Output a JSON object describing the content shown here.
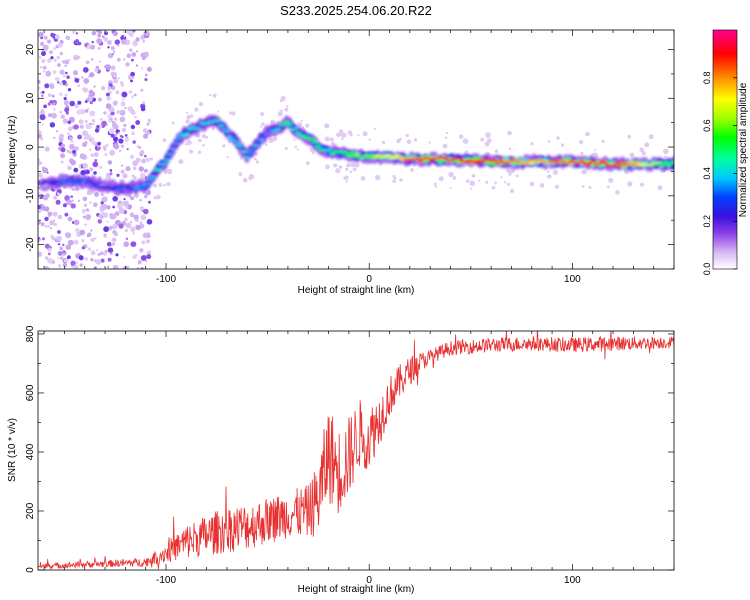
{
  "title": "S233.2025.254.06.20.R22",
  "chart_data": [
    {
      "type": "heatmap",
      "xlabel": "Height of straight line (km)",
      "ylabel": "Frequency (Hz)",
      "xlim": [
        -163,
        150
      ],
      "ylim": [
        -25,
        24
      ],
      "x_ticks": [
        -100,
        0,
        100
      ],
      "y_ticks": [
        -20,
        -10,
        0,
        10,
        20
      ],
      "colorbar": {
        "label": "Normalized spectral amplitude",
        "range": [
          0,
          1
        ],
        "ticks": [
          "0.0",
          "0.2",
          "0.4",
          "0.6",
          "0.8"
        ]
      },
      "ridge": {
        "x": [
          -160,
          -150,
          -140,
          -130,
          -120,
          -110,
          -105,
          -100,
          -95,
          -90,
          -85,
          -80,
          -75,
          -70,
          -65,
          -60,
          -55,
          -50,
          -45,
          -40,
          -35,
          -30,
          -25,
          -20,
          -10,
          0,
          10,
          20,
          40,
          60,
          80,
          100,
          120,
          150
        ],
        "freq": [
          -7.5,
          -7,
          -7,
          -8,
          -8.5,
          -8,
          -5,
          -3,
          1,
          3,
          4,
          5,
          5.5,
          3,
          1,
          -2,
          1,
          3,
          4,
          5,
          3,
          2,
          0,
          -1,
          -1.5,
          -2,
          -2,
          -2.5,
          -2.5,
          -3,
          -3,
          -3,
          -3.5,
          -3.5
        ],
        "amp": [
          0.2,
          0.3,
          0.3,
          0.25,
          0.3,
          0.35,
          0.45,
          0.4,
          0.35,
          0.45,
          0.4,
          0.4,
          0.4,
          0.35,
          0.4,
          0.4,
          0.35,
          0.3,
          0.4,
          0.45,
          0.45,
          0.55,
          0.5,
          0.45,
          0.6,
          0.6,
          0.7,
          0.85,
          0.95,
          0.9,
          0.75,
          0.85,
          0.9,
          0.5
        ]
      }
    },
    {
      "type": "line",
      "xlabel": "Height of straight line (km)",
      "ylabel": "SNR (10 * v/v)",
      "xlim": [
        -163,
        150
      ],
      "ylim": [
        0,
        810
      ],
      "x_ticks": [
        -100,
        0,
        100
      ],
      "y_ticks": [
        0,
        200,
        400,
        600,
        800
      ],
      "series": [
        {
          "name": "SNR",
          "color": "#e83030",
          "x": [
            -163,
            -150,
            -130,
            -110,
            -100,
            -90,
            -80,
            -70,
            -60,
            -50,
            -40,
            -30,
            -25,
            -20,
            -15,
            -10,
            -5,
            0,
            5,
            10,
            15,
            20,
            25,
            30,
            40,
            60,
            80,
            100,
            120,
            150
          ],
          "y": [
            12,
            15,
            20,
            25,
            55,
            90,
            110,
            130,
            140,
            160,
            180,
            190,
            230,
            380,
            320,
            370,
            450,
            440,
            500,
            580,
            630,
            670,
            700,
            720,
            750,
            760,
            765,
            760,
            765,
            770
          ],
          "noise": [
            10,
            10,
            12,
            15,
            35,
            60,
            70,
            80,
            80,
            80,
            80,
            90,
            130,
            170,
            150,
            140,
            120,
            110,
            90,
            70,
            60,
            50,
            35,
            25,
            25,
            25,
            25,
            25,
            25,
            20
          ]
        }
      ]
    }
  ],
  "colors": {
    "snr_line": "#e83030",
    "axes": "#000000"
  }
}
